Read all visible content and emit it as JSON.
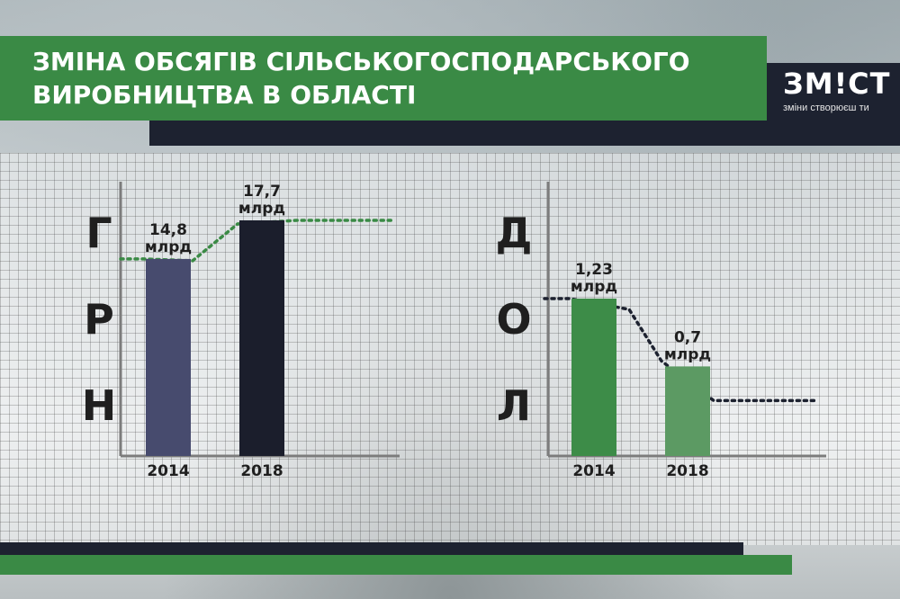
{
  "title": {
    "line1": "ЗМІНА ОБСЯГІВ СІЛЬСЬКОГОСПОДАРСЬКОГО",
    "line2": "ВИРОБНИЦТВА В ОБЛАСТІ"
  },
  "logo": {
    "name": "ЗМ!СТ",
    "tagline": "зміни створюєш ти"
  },
  "colors": {
    "green": "#3a8a45",
    "dark": "#1d2230",
    "uah_2014": "#474b6e",
    "uah_2018": "#1b1e2c",
    "usd_2014": "#3d8c48",
    "usd_2018": "#5c9a63"
  },
  "chart_data": [
    {
      "type": "bar",
      "unit_letters": [
        "Г",
        "Р",
        "Н"
      ],
      "categories": [
        "2014",
        "2018"
      ],
      "values": [
        14.8,
        17.7
      ],
      "value_labels": [
        "14,8",
        "17,7"
      ],
      "value_unit": "млрд",
      "bar_colors": [
        "#474b6e",
        "#1b1e2c"
      ],
      "trend_color": "#3a8a45",
      "title": "",
      "xlabel": "",
      "ylabel": "",
      "grid": true
    },
    {
      "type": "bar",
      "unit_letters": [
        "Д",
        "О",
        "Л"
      ],
      "categories": [
        "2014",
        "2018"
      ],
      "values": [
        1.23,
        0.7
      ],
      "value_labels": [
        "1,23",
        "0,7"
      ],
      "value_unit": "млрд",
      "bar_colors": [
        "#3d8c48",
        "#5c9a63"
      ],
      "trend_color": "#1d2230",
      "title": "",
      "xlabel": "",
      "ylabel": "",
      "grid": true
    }
  ]
}
